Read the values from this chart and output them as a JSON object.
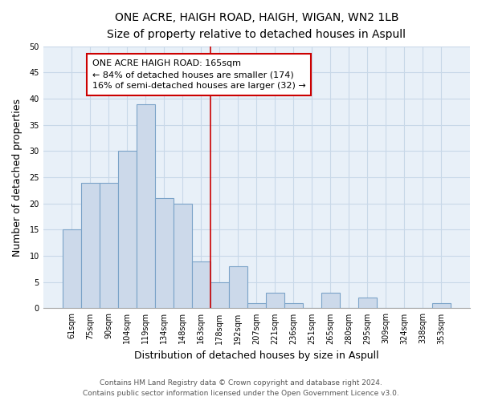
{
  "title": "ONE ACRE, HAIGH ROAD, HAIGH, WIGAN, WN2 1LB",
  "subtitle": "Size of property relative to detached houses in Aspull",
  "xlabel": "Distribution of detached houses by size in Aspull",
  "ylabel": "Number of detached properties",
  "bar_labels": [
    "61sqm",
    "75sqm",
    "90sqm",
    "104sqm",
    "119sqm",
    "134sqm",
    "148sqm",
    "163sqm",
    "178sqm",
    "192sqm",
    "207sqm",
    "221sqm",
    "236sqm",
    "251sqm",
    "265sqm",
    "280sqm",
    "295sqm",
    "309sqm",
    "324sqm",
    "338sqm",
    "353sqm"
  ],
  "bar_values": [
    15,
    24,
    24,
    30,
    39,
    21,
    20,
    9,
    5,
    8,
    1,
    3,
    1,
    0,
    3,
    0,
    2,
    0,
    0,
    0,
    1
  ],
  "bar_color": "#ccd9ea",
  "bar_edge_color": "#7ba3c8",
  "vline_color": "#cc0000",
  "annotation_text": "ONE ACRE HAIGH ROAD: 165sqm\n← 84% of detached houses are smaller (174)\n16% of semi-detached houses are larger (32) →",
  "annotation_box_color": "#ffffff",
  "annotation_box_edge": "#cc0000",
  "ylim": [
    0,
    50
  ],
  "yticks": [
    0,
    5,
    10,
    15,
    20,
    25,
    30,
    35,
    40,
    45,
    50
  ],
  "footer_line1": "Contains HM Land Registry data © Crown copyright and database right 2024.",
  "footer_line2": "Contains public sector information licensed under the Open Government Licence v3.0.",
  "title_fontsize": 10,
  "subtitle_fontsize": 9,
  "axis_label_fontsize": 9,
  "tick_fontsize": 7,
  "annotation_fontsize": 8,
  "footer_fontsize": 6.5,
  "background_color": "#ffffff",
  "grid_color": "#c8d8e8"
}
